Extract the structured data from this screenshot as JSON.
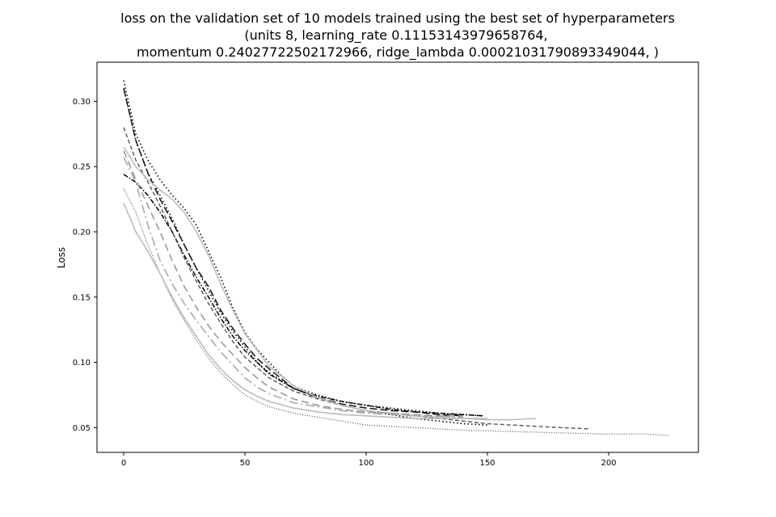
{
  "chart_data": {
    "type": "line",
    "title_lines": [
      "loss on the validation set of 10 models trained using the best set of hyperparameters",
      "(units 8, learning_rate 0.11153143979658764,",
      "momentum 0.24027722502172966, ridge_lambda 0.00021031790893349044, )"
    ],
    "xlabel": "",
    "ylabel": "Loss",
    "xlim": [
      -11,
      237
    ],
    "ylim": [
      0.031,
      0.33
    ],
    "xticks": [
      0,
      50,
      100,
      150,
      200
    ],
    "yticks": [
      0.05,
      0.1,
      0.15,
      0.2,
      0.25,
      0.3
    ],
    "ytick_labels": [
      "0.05",
      "0.10",
      "0.15",
      "0.20",
      "0.25",
      "0.30"
    ],
    "grid": false,
    "legend": "none",
    "series": [
      {
        "color": "#000000",
        "dash": "1.5,3",
        "width": 1.6,
        "x": [
          0,
          5,
          10,
          15,
          20,
          25,
          30,
          35,
          40,
          45,
          50,
          55,
          60,
          65,
          70,
          75,
          80,
          90,
          100,
          110,
          120,
          130,
          140,
          148
        ],
        "y": [
          0.316,
          0.275,
          0.255,
          0.24,
          0.228,
          0.218,
          0.205,
          0.185,
          0.165,
          0.142,
          0.123,
          0.11,
          0.1,
          0.09,
          0.082,
          0.078,
          0.075,
          0.07,
          0.067,
          0.065,
          0.063,
          0.061,
          0.06,
          0.059
        ]
      },
      {
        "color": "#000000",
        "dash": "1.5,3",
        "width": 1.6,
        "x": [
          0,
          5,
          10,
          15,
          20,
          25,
          30,
          35,
          40,
          45,
          50,
          55,
          60,
          70,
          80,
          90,
          100,
          110,
          120,
          130,
          140,
          150
        ],
        "y": [
          0.31,
          0.27,
          0.245,
          0.228,
          0.21,
          0.19,
          0.172,
          0.155,
          0.138,
          0.124,
          0.112,
          0.1,
          0.092,
          0.08,
          0.073,
          0.067,
          0.063,
          0.06,
          0.057,
          0.055,
          0.053,
          0.052
        ]
      },
      {
        "color": "#111111",
        "dash": "9,4",
        "width": 1.5,
        "x": [
          0,
          5,
          10,
          15,
          20,
          25,
          30,
          35,
          40,
          45,
          50,
          55,
          60,
          70,
          80,
          90,
          100,
          110,
          120,
          130,
          140
        ],
        "y": [
          0.31,
          0.27,
          0.245,
          0.225,
          0.208,
          0.19,
          0.172,
          0.158,
          0.14,
          0.126,
          0.114,
          0.103,
          0.095,
          0.08,
          0.073,
          0.068,
          0.065,
          0.063,
          0.062,
          0.06,
          0.059
        ]
      },
      {
        "color": "#000000",
        "dash": "6,2,1.5,2",
        "width": 1.5,
        "x": [
          0,
          5,
          10,
          15,
          20,
          25,
          30,
          35,
          40,
          45,
          50,
          55,
          60,
          70,
          80,
          90,
          100,
          110,
          120,
          130,
          140,
          148
        ],
        "y": [
          0.244,
          0.238,
          0.228,
          0.215,
          0.2,
          0.182,
          0.165,
          0.15,
          0.134,
          0.12,
          0.109,
          0.1,
          0.091,
          0.08,
          0.074,
          0.07,
          0.067,
          0.064,
          0.062,
          0.061,
          0.06,
          0.059
        ]
      },
      {
        "color": "#555555",
        "dash": "5,3",
        "width": 1.4,
        "x": [
          0,
          5,
          10,
          15,
          20,
          25,
          30,
          35,
          40,
          45,
          50,
          60,
          70,
          80,
          90,
          100,
          110,
          120,
          130,
          140,
          150,
          160,
          170,
          180,
          192
        ],
        "y": [
          0.28,
          0.255,
          0.238,
          0.22,
          0.2,
          0.18,
          0.162,
          0.145,
          0.13,
          0.116,
          0.104,
          0.088,
          0.078,
          0.072,
          0.067,
          0.063,
          0.061,
          0.059,
          0.057,
          0.055,
          0.053,
          0.052,
          0.051,
          0.05,
          0.049
        ]
      },
      {
        "color": "#555555",
        "dash": "1,2",
        "width": 1.3,
        "x": [
          0,
          5,
          10,
          15,
          20,
          25,
          30,
          35,
          40,
          45,
          50,
          55,
          60,
          70,
          80,
          90,
          100,
          120,
          140,
          160,
          180,
          200,
          215,
          225
        ],
        "y": [
          0.233,
          0.215,
          0.19,
          0.168,
          0.148,
          0.132,
          0.117,
          0.103,
          0.092,
          0.083,
          0.075,
          0.07,
          0.066,
          0.061,
          0.058,
          0.055,
          0.052,
          0.05,
          0.048,
          0.047,
          0.046,
          0.045,
          0.045,
          0.044
        ]
      },
      {
        "color": "#bbbbbb",
        "dash": "",
        "width": 1.6,
        "x": [
          0,
          5,
          10,
          15,
          20,
          25,
          30,
          35,
          40,
          45,
          50,
          60,
          70,
          80,
          90,
          100,
          110,
          120,
          130,
          140,
          150,
          160,
          170
        ],
        "y": [
          0.265,
          0.25,
          0.24,
          0.232,
          0.225,
          0.215,
          0.2,
          0.182,
          0.16,
          0.14,
          0.122,
          0.097,
          0.082,
          0.073,
          0.067,
          0.063,
          0.061,
          0.059,
          0.058,
          0.057,
          0.056,
          0.056,
          0.057
        ]
      },
      {
        "color": "#bbbbbb",
        "dash": "",
        "width": 1.6,
        "x": [
          0,
          5,
          10,
          15,
          20,
          25,
          30,
          35,
          40,
          45,
          50,
          55,
          60,
          70,
          80,
          90,
          100,
          110,
          120,
          130,
          140,
          150
        ],
        "y": [
          0.222,
          0.2,
          0.185,
          0.168,
          0.15,
          0.134,
          0.12,
          0.106,
          0.095,
          0.086,
          0.079,
          0.074,
          0.07,
          0.065,
          0.062,
          0.06,
          0.059,
          0.058,
          0.057,
          0.057,
          0.057,
          0.057
        ]
      },
      {
        "color": "#aaaaaa",
        "dash": "11,4,2,4",
        "width": 1.6,
        "x": [
          0,
          5,
          10,
          15,
          20,
          25,
          30,
          35,
          40,
          45,
          50,
          55,
          60,
          70,
          80,
          90,
          100,
          110,
          120,
          130,
          140
        ],
        "y": [
          0.257,
          0.238,
          0.205,
          0.178,
          0.16,
          0.145,
          0.132,
          0.12,
          0.108,
          0.098,
          0.088,
          0.081,
          0.076,
          0.069,
          0.066,
          0.063,
          0.061,
          0.06,
          0.059,
          0.059,
          0.058
        ]
      },
      {
        "color": "#999999",
        "dash": "9,5",
        "width": 1.6,
        "x": [
          0,
          5,
          10,
          15,
          20,
          25,
          30,
          35,
          40,
          45,
          50,
          55,
          60,
          70,
          80,
          90,
          100,
          110,
          120,
          130,
          140
        ],
        "y": [
          0.262,
          0.24,
          0.22,
          0.2,
          0.178,
          0.158,
          0.142,
          0.128,
          0.116,
          0.106,
          0.096,
          0.088,
          0.081,
          0.072,
          0.067,
          0.064,
          0.062,
          0.061,
          0.06,
          0.059,
          0.059
        ]
      }
    ]
  }
}
